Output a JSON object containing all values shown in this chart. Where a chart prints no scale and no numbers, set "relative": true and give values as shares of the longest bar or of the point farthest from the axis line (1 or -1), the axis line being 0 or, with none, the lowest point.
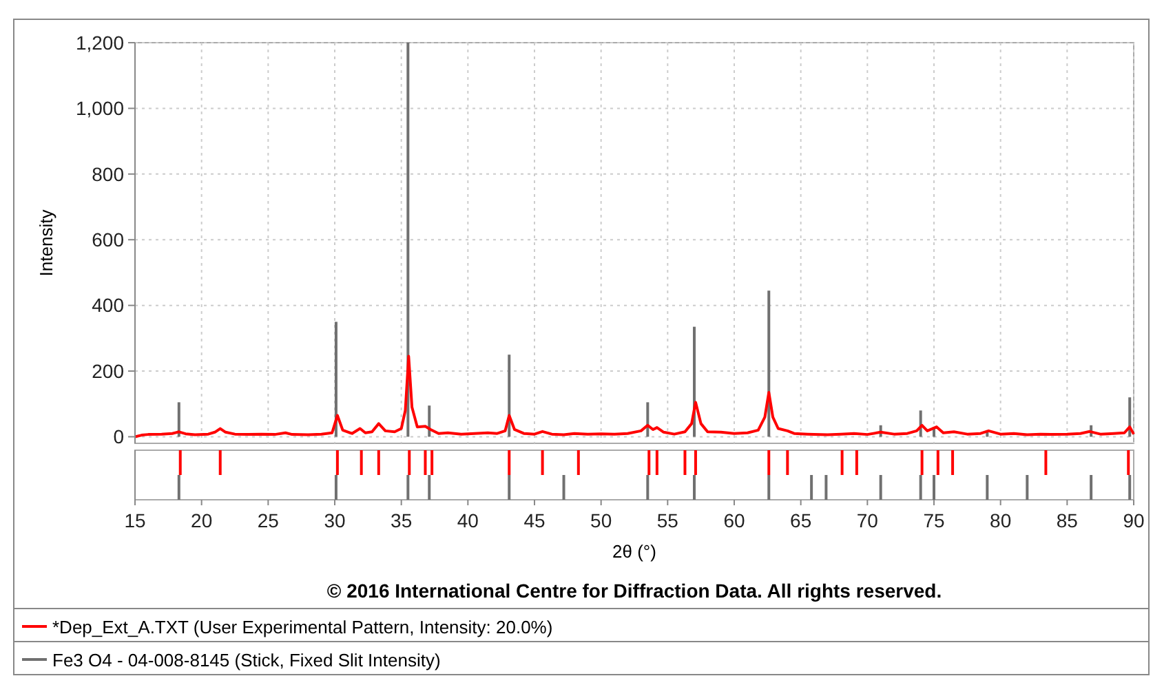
{
  "chart_data": [
    {
      "type": "line",
      "ylabel": "Intensity",
      "xlim": [
        15,
        90
      ],
      "xticks": [
        15,
        20,
        25,
        30,
        35,
        40,
        45,
        50,
        55,
        60,
        65,
        70,
        75,
        80,
        85,
        90
      ],
      "ylim": [
        -20,
        1200
      ],
      "yticks": [
        0,
        200,
        400,
        600,
        800,
        {
          "value": 1000,
          "label": "1,000"
        },
        {
          "value": 1200,
          "label": "1,200"
        }
      ],
      "tick_labels": "y",
      "grid": true,
      "legend": "bottom",
      "annotations": [
        "© 2016 International Centre for Diffraction Data. All rights reserved."
      ],
      "series": [
        {
          "name": "*Dep_Ext_A.TXT (User Experimental Pattern, Intensity: 20.0%)",
          "color": "#ff0000",
          "x": [
            15,
            15.5,
            16,
            17,
            17.8,
            18.3,
            18.8,
            19.5,
            20.5,
            21.0,
            21.4,
            21.8,
            22.5,
            23.5,
            24.5,
            25.5,
            26.3,
            26.8,
            28,
            29,
            29.8,
            30.2,
            30.6,
            31.3,
            31.9,
            32.3,
            32.8,
            33.3,
            33.8,
            34.5,
            35.0,
            35.3,
            35.55,
            35.8,
            36.2,
            36.8,
            37.2,
            37.8,
            38.5,
            39.5,
            40.5,
            41.5,
            42.2,
            42.8,
            43.1,
            43.5,
            44.2,
            45,
            45.6,
            46.3,
            47.2,
            48,
            49,
            50,
            51,
            52,
            53,
            53.5,
            53.9,
            54.2,
            54.7,
            55.5,
            56.3,
            56.8,
            57.1,
            57.5,
            58,
            59,
            60,
            61,
            61.8,
            62.3,
            62.6,
            62.9,
            63.3,
            64,
            64.5,
            65.5,
            67,
            68,
            69,
            70,
            71,
            72,
            73,
            73.7,
            74.1,
            74.5,
            75.2,
            75.7,
            76.5,
            77.5,
            78.5,
            79.1,
            80,
            81,
            82,
            83,
            84,
            85,
            86,
            86.7,
            87.5,
            88.5,
            89.3,
            89.7,
            90
          ],
          "values": [
            0,
            5,
            7,
            8,
            10,
            15,
            9,
            6,
            8,
            14,
            25,
            14,
            8,
            7,
            8,
            7,
            12,
            7,
            6,
            8,
            12,
            65,
            20,
            10,
            25,
            12,
            15,
            40,
            18,
            15,
            25,
            80,
            245,
            90,
            30,
            32,
            22,
            10,
            12,
            8,
            10,
            12,
            10,
            18,
            65,
            22,
            10,
            8,
            16,
            8,
            6,
            10,
            8,
            9,
            8,
            10,
            18,
            35,
            22,
            28,
            14,
            8,
            15,
            40,
            105,
            40,
            15,
            14,
            10,
            12,
            20,
            60,
            135,
            60,
            25,
            18,
            10,
            8,
            6,
            8,
            10,
            7,
            14,
            8,
            10,
            18,
            35,
            18,
            30,
            12,
            15,
            8,
            10,
            18,
            8,
            10,
            6,
            8,
            7,
            8,
            10,
            16,
            8,
            10,
            12,
            30,
            8
          ]
        },
        {
          "type": "bar",
          "name": "Fe3 O4 - 04-008-8145 (Stick, Fixed Slit Intensity)",
          "color": "#707070",
          "x": [
            18.3,
            30.1,
            35.5,
            37.1,
            43.1,
            47.2,
            53.5,
            57.0,
            62.6,
            65.8,
            66.9,
            71.0,
            74.0,
            75.0,
            79.0,
            82.0,
            86.8,
            89.7
          ],
          "values": [
            105,
            350,
            1200,
            95,
            250,
            null,
            105,
            335,
            445,
            null,
            null,
            35,
            80,
            30,
            20,
            null,
            35,
            120
          ]
        }
      ]
    },
    {
      "type": "bar",
      "relative": true,
      "xlabel": "2θ (°)",
      "xlim": [
        15,
        90
      ],
      "xticks": [
        15,
        20,
        25,
        30,
        35,
        40,
        45,
        50,
        55,
        60,
        65,
        70,
        75,
        80,
        85,
        90
      ],
      "tick_labels": "x",
      "series": [
        {
          "color": "#ff0000",
          "x": [
            18.4,
            21.4,
            30.2,
            32.0,
            33.3,
            35.6,
            36.8,
            37.3,
            43.1,
            45.6,
            48.3,
            53.6,
            54.2,
            56.3,
            57.1,
            62.6,
            64.0,
            68.1,
            69.2,
            74.1,
            75.3,
            76.4,
            83.4,
            89.6
          ],
          "values": [
            1,
            1,
            1,
            1,
            1,
            1,
            1,
            1,
            1,
            1,
            1,
            1,
            1,
            1,
            1,
            1,
            1,
            1,
            1,
            1,
            1,
            1,
            1,
            1
          ]
        },
        {
          "color": "#707070",
          "x": [
            18.3,
            30.1,
            35.5,
            37.1,
            43.1,
            47.2,
            53.5,
            57.0,
            62.6,
            65.8,
            66.9,
            71.0,
            74.0,
            75.0,
            79.0,
            82.0,
            86.8,
            89.7
          ],
          "values": [
            -1,
            -1,
            -1,
            -1,
            -1,
            -1,
            -1,
            -1,
            -1,
            -1,
            -1,
            -1,
            -1,
            -1,
            -1,
            -1,
            -1,
            -1
          ]
        }
      ]
    }
  ]
}
